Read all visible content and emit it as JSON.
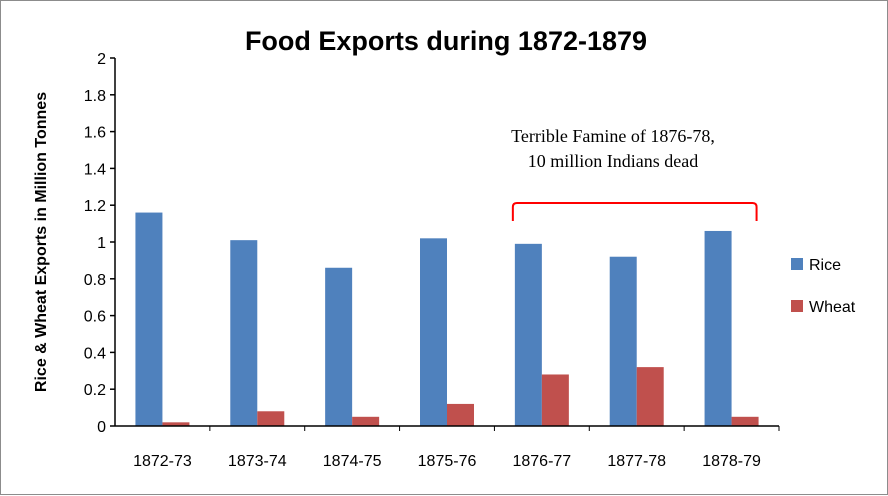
{
  "chart_data": {
    "type": "bar",
    "title": "Food Exports during 1872-1879",
    "xlabel": "",
    "ylabel": "Rice & Wheat Exports in Million Tonnes",
    "ylim": [
      0,
      2
    ],
    "yticks": [
      "0",
      "0.2",
      "0.4",
      "0.6",
      "0.8",
      "1",
      "1.2",
      "1.4",
      "1.6",
      "1.8",
      "2"
    ],
    "categories": [
      "1872-73",
      "1873-74",
      "1874-75",
      "1875-76",
      "1876-77",
      "1877-78",
      "1878-79"
    ],
    "series": [
      {
        "name": "Rice",
        "color": "#4f81bd",
        "values": [
          1.16,
          1.01,
          0.86,
          1.02,
          0.99,
          0.92,
          1.06
        ]
      },
      {
        "name": "Wheat",
        "color": "#c0504d",
        "values": [
          0.02,
          0.08,
          0.05,
          0.12,
          0.28,
          0.32,
          0.05
        ]
      }
    ],
    "grid": false,
    "legend": "right",
    "annotation": {
      "lines": [
        "Terrible Famine of 1876-78,",
        "10 million Indians dead"
      ],
      "bracket_from": "1876-77",
      "bracket_to": "1878-79",
      "color": "#ff0000"
    }
  }
}
